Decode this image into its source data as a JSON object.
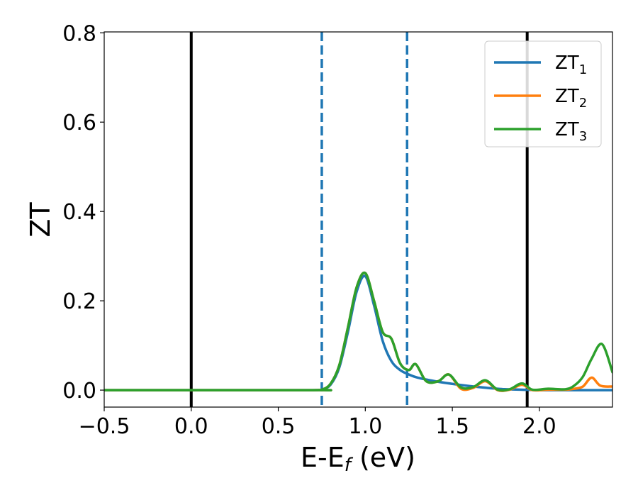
{
  "chart_data": {
    "type": "line",
    "title": "",
    "xlabel": "E-E",
    "xlabel_sub": "f",
    "xlabel_unit": " (eV)",
    "ylabel": "ZT",
    "xlim": [
      -0.5,
      2.42
    ],
    "ylim": [
      -0.038,
      0.802
    ],
    "xticks": [
      -0.5,
      0.0,
      0.5,
      1.0,
      1.5,
      2.0
    ],
    "xtick_labels": [
      "−0.5",
      "0.0",
      "0.5",
      "1.0",
      "1.5",
      "2.0"
    ],
    "yticks": [
      0.0,
      0.2,
      0.4,
      0.6,
      0.8
    ],
    "ytick_labels": [
      "0.0",
      "0.2",
      "0.4",
      "0.6",
      "0.8"
    ],
    "grid": false,
    "legend_position": "top-right",
    "vertical_lines": [
      {
        "x": 0.0,
        "style": "solid",
        "color": "#000000"
      },
      {
        "x": 0.75,
        "style": "dashed",
        "color": "#1f77b4"
      },
      {
        "x": 1.24,
        "style": "dashed",
        "color": "#1f77b4"
      },
      {
        "x": 1.93,
        "style": "solid",
        "color": "#000000"
      }
    ],
    "series": [
      {
        "name": "ZT",
        "name_sub": "1",
        "color": "#1f77b4",
        "x": [
          -0.5,
          0.7,
          0.75,
          0.8,
          0.85,
          0.9,
          0.95,
          1.0,
          1.05,
          1.1,
          1.15,
          1.2,
          1.25,
          1.3,
          1.4,
          1.5,
          1.6,
          1.7,
          1.8,
          1.9,
          2.0,
          2.1,
          2.2,
          2.3,
          2.42
        ],
        "y": [
          0.0,
          0.0,
          0.001,
          0.012,
          0.05,
          0.13,
          0.22,
          0.255,
          0.19,
          0.11,
          0.065,
          0.045,
          0.035,
          0.028,
          0.02,
          0.014,
          0.009,
          0.005,
          0.002,
          0.001,
          0.0,
          0.0,
          0.0,
          0.0,
          0.0
        ]
      },
      {
        "name": "ZT",
        "name_sub": "2",
        "color": "#ff7f0e",
        "x": [
          -0.5,
          0.7,
          0.75,
          0.8,
          0.85,
          0.9,
          0.95,
          1.0,
          1.05,
          1.1,
          1.15,
          1.2,
          1.25,
          1.29,
          1.35,
          1.42,
          1.48,
          1.55,
          1.62,
          1.69,
          1.76,
          1.83,
          1.9,
          1.96,
          2.05,
          2.15,
          2.2,
          2.25,
          2.3,
          2.35,
          2.42
        ],
        "y": [
          0.0,
          0.0,
          0.001,
          0.014,
          0.055,
          0.14,
          0.23,
          0.262,
          0.2,
          0.13,
          0.115,
          0.06,
          0.045,
          0.058,
          0.02,
          0.02,
          0.035,
          0.003,
          0.005,
          0.02,
          0.0,
          0.001,
          0.012,
          0.0,
          0.001,
          0.001,
          0.003,
          0.008,
          0.028,
          0.01,
          0.008
        ]
      },
      {
        "name": "ZT",
        "name_sub": "3",
        "color": "#2ca02c",
        "x": [
          -0.5,
          0.7,
          0.75,
          0.8,
          0.85,
          0.9,
          0.95,
          1.0,
          1.05,
          1.1,
          1.15,
          1.2,
          1.25,
          1.29,
          1.35,
          1.42,
          1.48,
          1.55,
          1.62,
          1.69,
          1.76,
          1.83,
          1.9,
          1.96,
          2.05,
          2.15,
          2.2,
          2.25,
          2.3,
          2.36,
          2.42
        ],
        "y": [
          0.0,
          0.0,
          0.001,
          0.014,
          0.055,
          0.14,
          0.23,
          0.262,
          0.2,
          0.13,
          0.115,
          0.06,
          0.045,
          0.058,
          0.02,
          0.02,
          0.035,
          0.006,
          0.007,
          0.022,
          0.001,
          0.002,
          0.015,
          0.001,
          0.003,
          0.002,
          0.01,
          0.03,
          0.07,
          0.103,
          0.04
        ]
      }
    ]
  }
}
